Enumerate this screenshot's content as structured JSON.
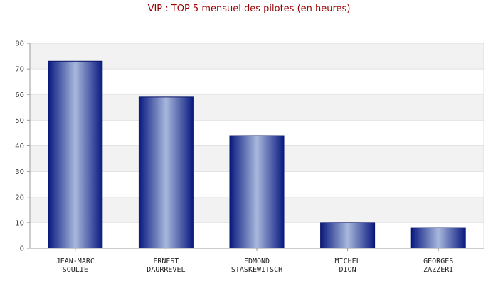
{
  "chart_data": {
    "type": "bar",
    "title": "VIP : TOP 5 mensuel des pilotes (en heures)",
    "categories": [
      [
        "JEAN-MARC",
        "SOULIE"
      ],
      [
        "ERNEST",
        "DAURREVEL"
      ],
      [
        "EDMOND",
        "STASKEWITSCH"
      ],
      [
        "MICHEL",
        "DION"
      ],
      [
        "GEORGES",
        "ZAZZERI"
      ]
    ],
    "values": [
      73,
      59,
      44,
      10,
      8
    ],
    "ylim": [
      0,
      80
    ],
    "yticks": [
      0,
      10,
      20,
      30,
      40,
      50,
      60,
      70,
      80
    ],
    "grid": true,
    "colors": {
      "title": "#990000",
      "bar_dark": "#0a1a80",
      "bar_light": "#a8b8dc",
      "band": "#f2f2f2",
      "grid": "#e2e2e2",
      "axis": "#999999"
    }
  }
}
